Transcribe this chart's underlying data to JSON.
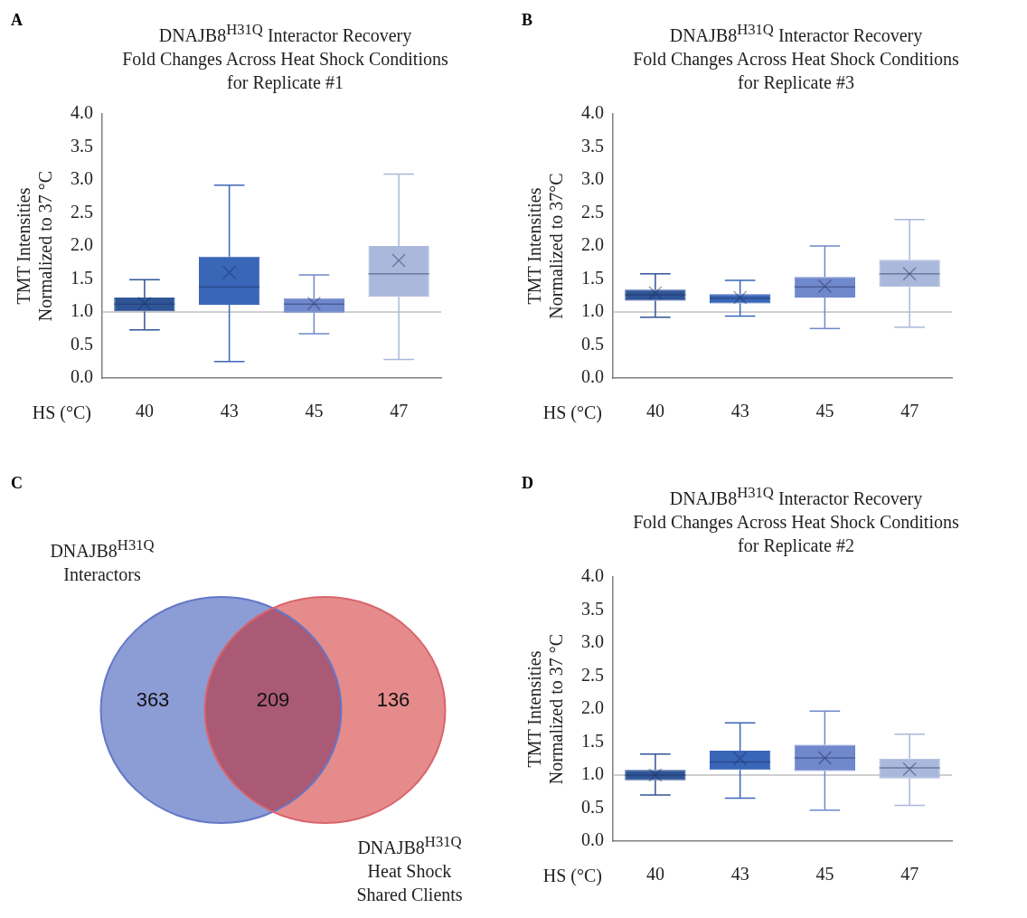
{
  "chart_data": [
    {
      "type": "box",
      "annotations": [
        "A"
      ],
      "title": "DNAJB8$^{H31Q}$ Interactor Recovery\nFold Changes Across Heat Shock Conditions\nfor Replicate #1",
      "ylabel": "TMT Intensities\nNormalized to 37 °C",
      "xlabel": "HS (°C)",
      "categories": [
        "40",
        "43",
        "45",
        "47"
      ],
      "colors": [
        "#2f5597",
        "#3a66b8",
        "#7088cc",
        "#aab8dc"
      ],
      "boxes": [
        {
          "low": 0.73,
          "q1": 1.01,
          "median": 1.12,
          "q3": 1.22,
          "high": 1.49,
          "mean": 1.13
        },
        {
          "low": 0.25,
          "q1": 1.11,
          "median": 1.38,
          "q3": 1.84,
          "high": 2.92,
          "mean": 1.6
        },
        {
          "low": 0.67,
          "q1": 0.99,
          "median": 1.12,
          "q3": 1.21,
          "high": 1.56,
          "mean": 1.13
        },
        {
          "low": 0.28,
          "q1": 1.23,
          "median": 1.58,
          "q3": 2.0,
          "high": 3.09,
          "mean": 1.78
        }
      ],
      "ylim": [
        0,
        4
      ],
      "yticks": [
        {
          "value": 0,
          "label": "0.0"
        },
        {
          "value": 0.5,
          "label": "0.5"
        },
        {
          "value": 1,
          "label": "1.0"
        },
        {
          "value": 1.5,
          "label": "1.5"
        },
        {
          "value": 2,
          "label": "2.0"
        },
        {
          "value": 2.5,
          "label": "2.5"
        },
        {
          "value": 3,
          "label": "3.0"
        },
        {
          "value": 3.5,
          "label": "3.5"
        },
        {
          "value": 4,
          "label": "4.0"
        }
      ],
      "ref_lines": [
        {
          "axis": "y",
          "value": 1,
          "color": "#bfbfbf"
        }
      ],
      "grid": false,
      "legend": false
    },
    {
      "type": "box",
      "annotations": [
        "B"
      ],
      "title": "DNAJB8$^{H31Q}$ Interactor Recovery\nFold Changes Across Heat Shock Conditions\nfor Replicate #3",
      "ylabel": "TMT Intensities\nNormalized to 37°C",
      "xlabel": "HS (°C)",
      "categories": [
        "40",
        "43",
        "45",
        "47"
      ],
      "colors": [
        "#2f5597",
        "#3a66b8",
        "#7088cc",
        "#aab8dc"
      ],
      "boxes": [
        {
          "low": 0.92,
          "q1": 1.17,
          "median": 1.26,
          "q3": 1.34,
          "high": 1.58,
          "mean": 1.29
        },
        {
          "low": 0.94,
          "q1": 1.13,
          "median": 1.21,
          "q3": 1.27,
          "high": 1.48,
          "mean": 1.22
        },
        {
          "low": 0.75,
          "q1": 1.22,
          "median": 1.38,
          "q3": 1.53,
          "high": 2.0,
          "mean": 1.39
        },
        {
          "low": 0.77,
          "q1": 1.38,
          "median": 1.58,
          "q3": 1.79,
          "high": 2.4,
          "mean": 1.58
        }
      ],
      "ylim": [
        0,
        4
      ],
      "yticks": [
        {
          "value": 0,
          "label": "0.0"
        },
        {
          "value": 0.5,
          "label": "0.5"
        },
        {
          "value": 1,
          "label": "1.0"
        },
        {
          "value": 1.5,
          "label": "1.5"
        },
        {
          "value": 2,
          "label": "2.0"
        },
        {
          "value": 2.5,
          "label": "2.5"
        },
        {
          "value": 3,
          "label": "3.0"
        },
        {
          "value": 3.5,
          "label": "3.5"
        },
        {
          "value": 4,
          "label": "4.0"
        }
      ],
      "ref_lines": [
        {
          "axis": "y",
          "value": 1,
          "color": "#bfbfbf"
        }
      ],
      "grid": false,
      "legend": false
    },
    {
      "type": "other",
      "annotations": [
        "C"
      ],
      "categories": [
        "DNAJB8$^{H31Q}$\nInteractors",
        null,
        "DNAJB8$^{H31Q}$\nHeat Shock\nShared Clients"
      ],
      "values": [
        363,
        209,
        136
      ],
      "data_labels": true,
      "colors": [
        "#8c9dd6",
        "#aa5a75",
        "#e58b8b"
      ]
    },
    {
      "type": "box",
      "annotations": [
        "D"
      ],
      "title": "DNAJB8$^{H31Q}$ Interactor Recovery\nFold Changes Across Heat Shock Conditions\nfor Replicate #2",
      "ylabel": "TMT Intensities\nNormalized to 37 °C",
      "xlabel": "HS (°C)",
      "categories": [
        "40",
        "43",
        "45",
        "47"
      ],
      "colors": [
        "#2f5597",
        "#3a66b8",
        "#7088cc",
        "#aab8dc"
      ],
      "boxes": [
        {
          "low": 0.7,
          "q1": 0.92,
          "median": 1.0,
          "q3": 1.08,
          "high": 1.32,
          "mean": 1.0
        },
        {
          "low": 0.65,
          "q1": 1.08,
          "median": 1.2,
          "q3": 1.37,
          "high": 1.79,
          "mean": 1.25
        },
        {
          "low": 0.47,
          "q1": 1.06,
          "median": 1.26,
          "q3": 1.46,
          "high": 1.97,
          "mean": 1.26
        },
        {
          "low": 0.54,
          "q1": 0.95,
          "median": 1.11,
          "q3": 1.25,
          "high": 1.62,
          "mean": 1.09
        }
      ],
      "ylim": [
        0,
        4
      ],
      "yticks": [
        {
          "value": 0,
          "label": "0.0"
        },
        {
          "value": 0.5,
          "label": "0.5"
        },
        {
          "value": 1,
          "label": "1.0"
        },
        {
          "value": 1.5,
          "label": "1.5"
        },
        {
          "value": 2,
          "label": "2.0"
        },
        {
          "value": 2.5,
          "label": "2.5"
        },
        {
          "value": 3,
          "label": "3.0"
        },
        {
          "value": 3.5,
          "label": "3.5"
        },
        {
          "value": 4,
          "label": "4.0"
        }
      ],
      "ref_lines": [
        {
          "axis": "y",
          "value": 1,
          "color": "#bfbfbf"
        }
      ],
      "grid": false,
      "legend": false
    }
  ]
}
